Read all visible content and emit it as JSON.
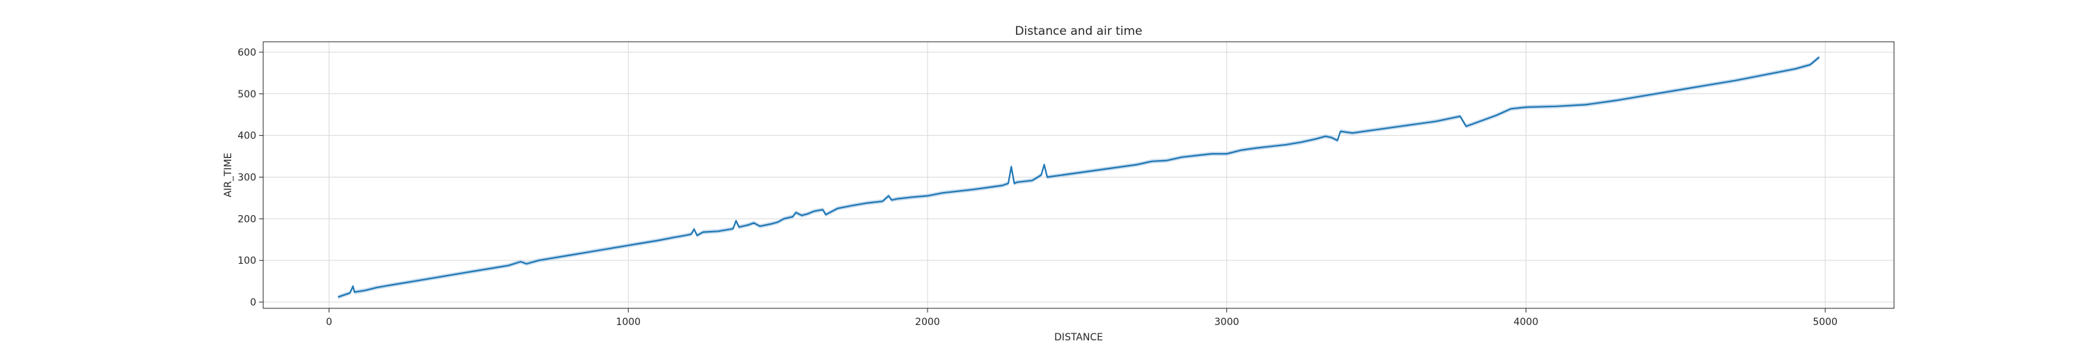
{
  "chart_data": {
    "type": "line",
    "title": "Distance and air time",
    "xlabel": "DISTANCE",
    "ylabel": "AIR_TIME",
    "xlim": [
      -220,
      5230
    ],
    "ylim": [
      -15,
      625
    ],
    "xticks": [
      0,
      1000,
      2000,
      3000,
      4000,
      5000
    ],
    "yticks": [
      0,
      100,
      200,
      300,
      400,
      500,
      600
    ],
    "grid": true,
    "legend": "none",
    "colors": {
      "line": "#1f77b4",
      "band": "#a6c8e4",
      "grid": "#d9d9d9",
      "frame": "#262626"
    },
    "series": [
      {
        "values": [
          [
            30,
            12
          ],
          [
            70,
            22
          ],
          [
            80,
            38
          ],
          [
            85,
            24
          ],
          [
            120,
            28
          ],
          [
            160,
            35
          ],
          [
            200,
            40
          ],
          [
            250,
            46
          ],
          [
            300,
            52
          ],
          [
            350,
            58
          ],
          [
            400,
            64
          ],
          [
            450,
            70
          ],
          [
            500,
            76
          ],
          [
            550,
            82
          ],
          [
            600,
            88
          ],
          [
            640,
            97
          ],
          [
            660,
            92
          ],
          [
            700,
            100
          ],
          [
            750,
            106
          ],
          [
            800,
            112
          ],
          [
            850,
            118
          ],
          [
            900,
            124
          ],
          [
            950,
            130
          ],
          [
            1000,
            136
          ],
          [
            1050,
            142
          ],
          [
            1100,
            148
          ],
          [
            1150,
            155
          ],
          [
            1190,
            160
          ],
          [
            1210,
            163
          ],
          [
            1220,
            175
          ],
          [
            1230,
            160
          ],
          [
            1250,
            168
          ],
          [
            1300,
            170
          ],
          [
            1350,
            176
          ],
          [
            1360,
            195
          ],
          [
            1370,
            180
          ],
          [
            1400,
            185
          ],
          [
            1420,
            190
          ],
          [
            1440,
            182
          ],
          [
            1480,
            188
          ],
          [
            1500,
            192
          ],
          [
            1520,
            200
          ],
          [
            1550,
            205
          ],
          [
            1560,
            215
          ],
          [
            1580,
            208
          ],
          [
            1600,
            212
          ],
          [
            1620,
            218
          ],
          [
            1650,
            222
          ],
          [
            1660,
            210
          ],
          [
            1700,
            225
          ],
          [
            1750,
            232
          ],
          [
            1800,
            238
          ],
          [
            1850,
            242
          ],
          [
            1870,
            255
          ],
          [
            1880,
            245
          ],
          [
            1900,
            248
          ],
          [
            1950,
            252
          ],
          [
            2000,
            255
          ],
          [
            2050,
            262
          ],
          [
            2100,
            266
          ],
          [
            2150,
            270
          ],
          [
            2200,
            275
          ],
          [
            2250,
            280
          ],
          [
            2270,
            285
          ],
          [
            2280,
            325
          ],
          [
            2290,
            285
          ],
          [
            2300,
            288
          ],
          [
            2350,
            292
          ],
          [
            2380,
            305
          ],
          [
            2390,
            330
          ],
          [
            2400,
            300
          ],
          [
            2450,
            305
          ],
          [
            2500,
            310
          ],
          [
            2550,
            315
          ],
          [
            2600,
            320
          ],
          [
            2650,
            325
          ],
          [
            2700,
            330
          ],
          [
            2750,
            338
          ],
          [
            2800,
            340
          ],
          [
            2850,
            348
          ],
          [
            2900,
            352
          ],
          [
            2950,
            356
          ],
          [
            3000,
            356
          ],
          [
            3050,
            365
          ],
          [
            3100,
            370
          ],
          [
            3150,
            374
          ],
          [
            3200,
            378
          ],
          [
            3250,
            384
          ],
          [
            3300,
            392
          ],
          [
            3330,
            398
          ],
          [
            3350,
            395
          ],
          [
            3370,
            388
          ],
          [
            3380,
            410
          ],
          [
            3420,
            406
          ],
          [
            3500,
            414
          ],
          [
            3600,
            424
          ],
          [
            3700,
            434
          ],
          [
            3780,
            446
          ],
          [
            3800,
            422
          ],
          [
            3900,
            448
          ],
          [
            3950,
            464
          ],
          [
            4000,
            468
          ],
          [
            4100,
            470
          ],
          [
            4200,
            474
          ],
          [
            4300,
            484
          ],
          [
            4400,
            496
          ],
          [
            4500,
            508
          ],
          [
            4600,
            520
          ],
          [
            4700,
            532
          ],
          [
            4800,
            546
          ],
          [
            4900,
            560
          ],
          [
            4950,
            570
          ],
          [
            4980,
            588
          ]
        ]
      }
    ]
  }
}
